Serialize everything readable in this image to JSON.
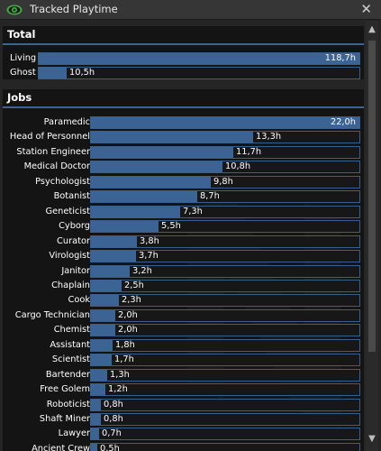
{
  "window": {
    "title": "Tracked Playtime",
    "close_glyph": "✕",
    "eye_icon": "eye-icon",
    "accent": "#3b6393"
  },
  "total": {
    "heading": "Total",
    "max": 118.7,
    "rows": [
      {
        "label": "Living",
        "value": 118.7,
        "text": "118,7h"
      },
      {
        "label": "Ghost",
        "value": 10.5,
        "text": "10,5h"
      }
    ]
  },
  "jobs": {
    "heading": "Jobs",
    "max": 22.0,
    "rows": [
      {
        "label": "Paramedic",
        "value": 22.0,
        "text": "22,0h"
      },
      {
        "label": "Head of Personnel",
        "value": 13.3,
        "text": "13,3h"
      },
      {
        "label": "Station Engineer",
        "value": 11.7,
        "text": "11,7h"
      },
      {
        "label": "Medical Doctor",
        "value": 10.8,
        "text": "10,8h"
      },
      {
        "label": "Psychologist",
        "value": 9.8,
        "text": "9,8h"
      },
      {
        "label": "Botanist",
        "value": 8.7,
        "text": "8,7h"
      },
      {
        "label": "Geneticist",
        "value": 7.3,
        "text": "7,3h"
      },
      {
        "label": "Cyborg",
        "value": 5.5,
        "text": "5,5h"
      },
      {
        "label": "Curator",
        "value": 3.8,
        "text": "3,8h"
      },
      {
        "label": "Virologist",
        "value": 3.7,
        "text": "3,7h"
      },
      {
        "label": "Janitor",
        "value": 3.2,
        "text": "3,2h"
      },
      {
        "label": "Chaplain",
        "value": 2.5,
        "text": "2,5h"
      },
      {
        "label": "Cook",
        "value": 2.3,
        "text": "2,3h"
      },
      {
        "label": "Cargo Technician",
        "value": 2.0,
        "text": "2,0h"
      },
      {
        "label": "Chemist",
        "value": 2.0,
        "text": "2,0h"
      },
      {
        "label": "Assistant",
        "value": 1.8,
        "text": "1,8h"
      },
      {
        "label": "Scientist",
        "value": 1.7,
        "text": "1,7h"
      },
      {
        "label": "Bartender",
        "value": 1.3,
        "text": "1,3h"
      },
      {
        "label": "Free Golem",
        "value": 1.2,
        "text": "1,2h"
      },
      {
        "label": "Roboticist",
        "value": 0.8,
        "text": "0,8h"
      },
      {
        "label": "Shaft Miner",
        "value": 0.8,
        "text": "0,8h"
      },
      {
        "label": "Lawyer",
        "value": 0.7,
        "text": "0,7h"
      },
      {
        "label": "Ancient Crew",
        "value": 0.5,
        "text": "0,5h"
      }
    ]
  },
  "scrollbar": {
    "up_glyph": "▲",
    "down_glyph": "▼"
  }
}
